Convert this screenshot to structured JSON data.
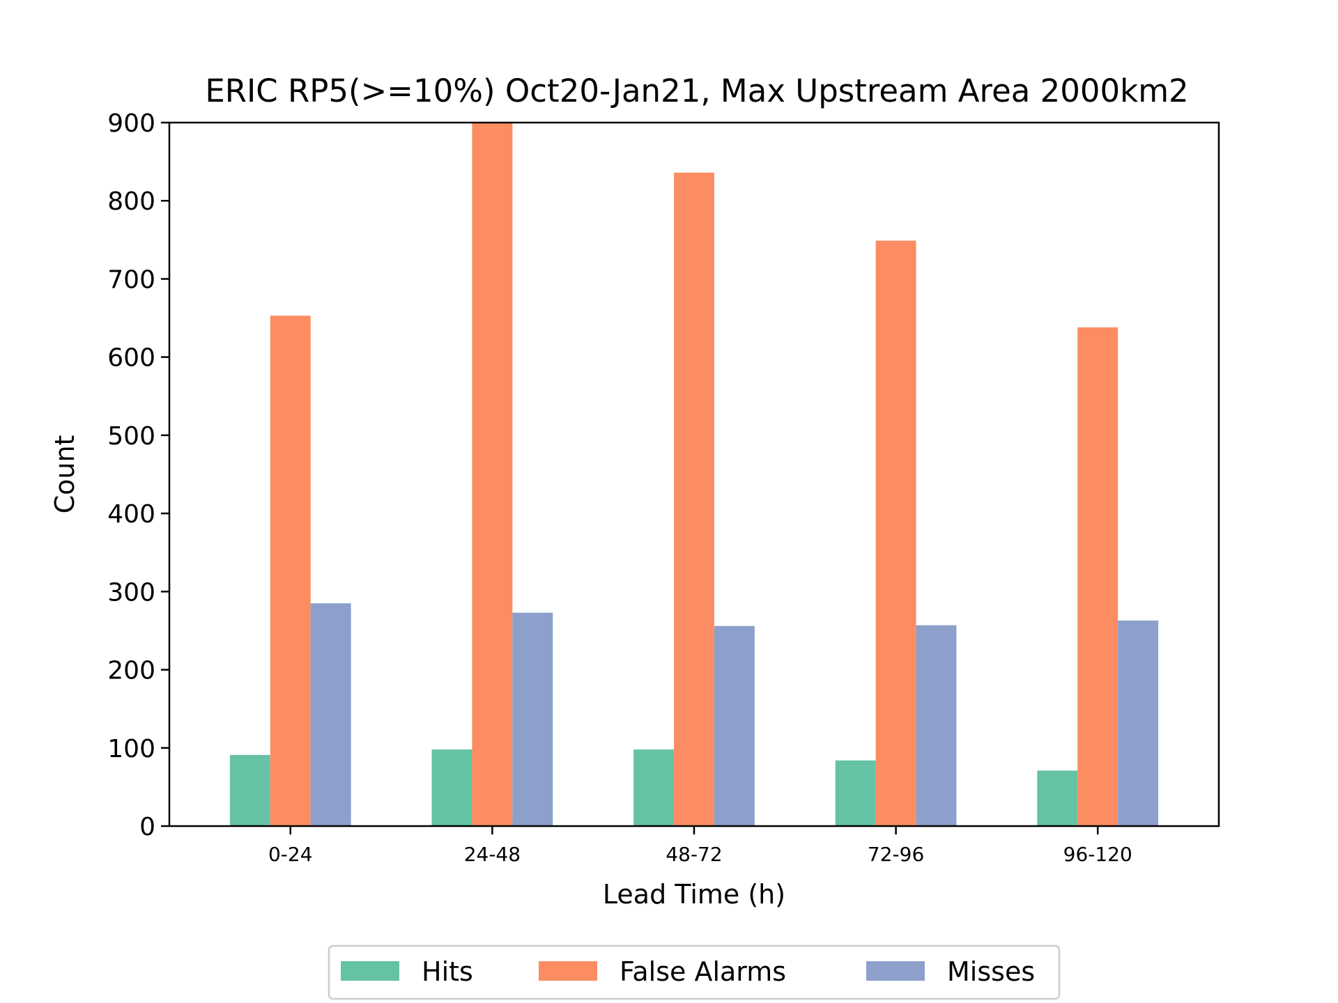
{
  "chart_data": {
    "type": "bar",
    "title": "ERIC RP5(>=10%) Oct20-Jan21, Max Upstream Area 2000km2",
    "xlabel": "Lead Time (h)",
    "ylabel": "Count",
    "categories": [
      "0-24",
      "24-48",
      "48-72",
      "72-96",
      "96-120"
    ],
    "series": [
      {
        "name": "Hits",
        "color": "#66c2a5",
        "values": [
          91,
          98,
          98,
          84,
          71
        ]
      },
      {
        "name": "False Alarms",
        "color": "#fc8d62",
        "values": [
          653,
          903,
          836,
          749,
          638
        ]
      },
      {
        "name": "Misses",
        "color": "#8da0cb",
        "values": [
          285,
          273,
          256,
          257,
          263
        ]
      }
    ],
    "ylim": [
      0,
      900
    ],
    "yticks": [
      0,
      100,
      200,
      300,
      400,
      500,
      600,
      700,
      800,
      900
    ],
    "grid": false,
    "legend_position": "bottom-center"
  }
}
